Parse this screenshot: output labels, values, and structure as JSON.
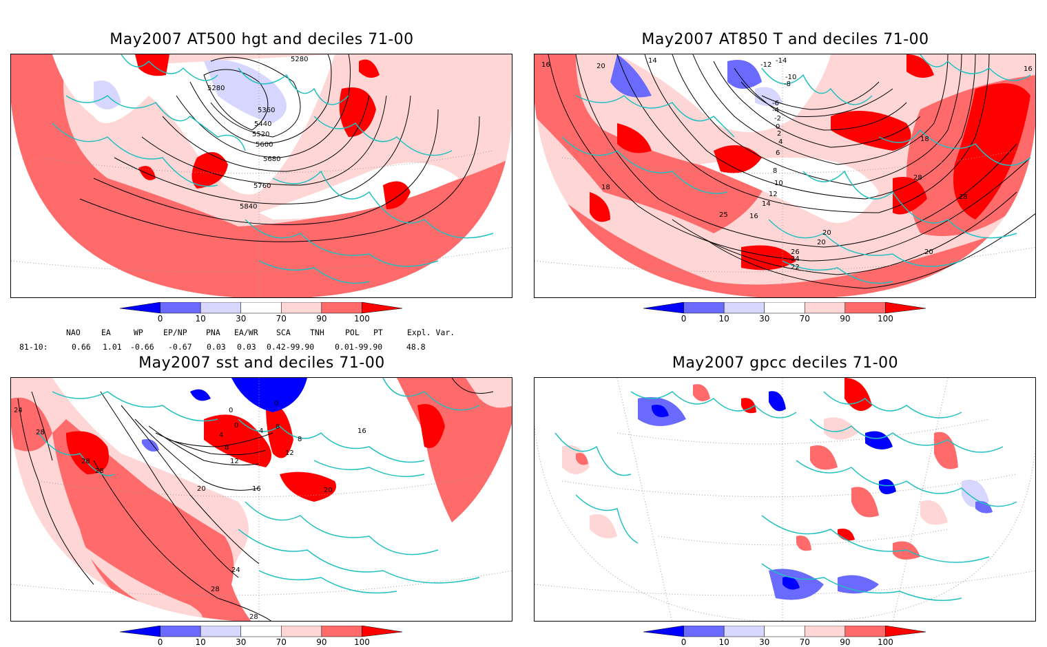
{
  "panels": [
    {
      "title": "May2007 AT500 hgt and deciles 71-00",
      "contour_labels": [
        "5280",
        "5280",
        "5360",
        "5440",
        "5520",
        "5600",
        "5680",
        "5760",
        "5840"
      ]
    },
    {
      "title": "May2007 AT850 T and deciles 71-00",
      "contour_labels": [
        "16",
        "20",
        "14",
        "-14",
        "-12",
        "-10",
        "-8",
        "-6",
        "-4",
        "-2",
        "0",
        "2",
        "4",
        "6",
        "8",
        "10",
        "12",
        "14",
        "16",
        "18",
        "18",
        "28",
        "28",
        "20",
        "26",
        "24",
        "22",
        "20",
        "20",
        "25",
        "16",
        "16"
      ]
    },
    {
      "title": "May2007 sst and deciles 71-00",
      "contour_labels": [
        "24",
        "28",
        "0",
        "0",
        "4",
        "0",
        "4",
        "8",
        "8",
        "12",
        "8",
        "12",
        "16",
        "16",
        "20",
        "20",
        "28",
        "28",
        "24",
        "28",
        "28"
      ]
    },
    {
      "title": "May2007 gpcc deciles 71-00",
      "contour_labels": []
    }
  ],
  "colorbar": {
    "labels": [
      "0",
      "10",
      "30",
      "70",
      "90",
      "100"
    ],
    "colors": [
      "#0000ff",
      "#6a6aff",
      "#d6d6ff",
      "#ffffff",
      "#ffd6d6",
      "#ff6a6a",
      "#ff0000"
    ]
  },
  "indices": {
    "headers": [
      "NAO",
      "EA",
      "WP",
      "EP/NP",
      "PNA",
      "EA/WR",
      "SCA",
      "TNH",
      "POL",
      "PT",
      "Expl. Var."
    ],
    "row_label": "81-10:",
    "values": [
      "0.66",
      "1.01",
      "-0.66",
      "-0.67",
      "0.03",
      "0.03",
      "0.42-99.90",
      "",
      "0.01-99.90",
      "",
      "48.8"
    ]
  },
  "colors": {
    "coast": "#20c0c0",
    "contour": "#000000",
    "grid": "#999999"
  }
}
